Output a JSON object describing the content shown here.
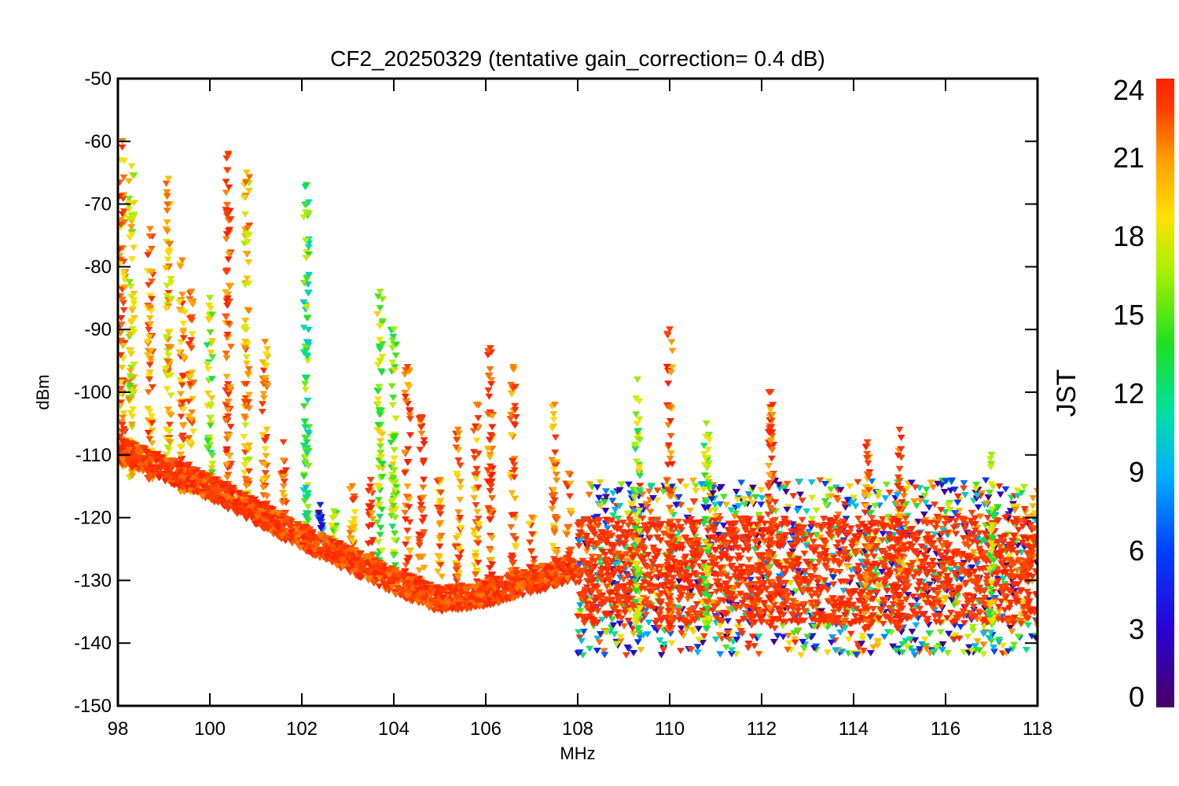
{
  "chart_data": {
    "type": "scatter",
    "title": "CF2_20250329 (tentative gain_correction=  0.4 dB)",
    "xlabel": "MHz",
    "ylabel": "dBm",
    "xlim": [
      98,
      118
    ],
    "ylim": [
      -150,
      -50
    ],
    "xticks": [
      98,
      100,
      102,
      104,
      106,
      108,
      110,
      112,
      114,
      116,
      118
    ],
    "yticks": [
      -50,
      -60,
      -70,
      -80,
      -90,
      -100,
      -110,
      -120,
      -130,
      -140,
      -150
    ],
    "colorbar": {
      "label": "JST",
      "range": [
        0,
        24
      ],
      "ticks": [
        0,
        3,
        6,
        9,
        12,
        15,
        18,
        21,
        24
      ],
      "colormap": "rainbow",
      "colors": [
        "#4a0066",
        "#2b00d0",
        "#0040ff",
        "#00b0ff",
        "#00e0a0",
        "#20e020",
        "#b0f000",
        "#ffe000",
        "#ffa000",
        "#ff4000",
        "#ff2000"
      ]
    },
    "marker": "triangle-down",
    "grid": false,
    "noise_floor": [
      {
        "x": 98,
        "y": -110
      },
      {
        "x": 100,
        "y": -116
      },
      {
        "x": 102,
        "y": -124
      },
      {
        "x": 104,
        "y": -131
      },
      {
        "x": 105,
        "y": -134
      },
      {
        "x": 106,
        "y": -133
      },
      {
        "x": 107,
        "y": -131
      },
      {
        "x": 107.9,
        "y": -129
      },
      {
        "x": 108,
        "y": -130
      },
      {
        "x": 118,
        "y": -130
      }
    ],
    "series": [
      {
        "x": 98.1,
        "y_min": -112,
        "y_max": -60,
        "jst": 20
      },
      {
        "x": 98.3,
        "y_min": -114,
        "y_max": -64,
        "jst": 16
      },
      {
        "x": 98.7,
        "y_min": -114,
        "y_max": -74,
        "jst": 20
      },
      {
        "x": 99.1,
        "y_min": -115,
        "y_max": -66,
        "jst": 18
      },
      {
        "x": 99.4,
        "y_min": -116,
        "y_max": -79,
        "jst": 20
      },
      {
        "x": 99.6,
        "y_min": -116,
        "y_max": -84,
        "jst": 20
      },
      {
        "x": 100.0,
        "y_min": -117,
        "y_max": -85,
        "jst": 14
      },
      {
        "x": 100.4,
        "y_min": -118,
        "y_max": -62,
        "jst": 22
      },
      {
        "x": 100.8,
        "y_min": -119,
        "y_max": -65,
        "jst": 18
      },
      {
        "x": 101.2,
        "y_min": -120,
        "y_max": -92,
        "jst": 20
      },
      {
        "x": 101.6,
        "y_min": -121,
        "y_max": -108,
        "jst": 22
      },
      {
        "x": 102.1,
        "y_min": -123,
        "y_max": -67,
        "jst": 12
      },
      {
        "x": 102.4,
        "y_min": -124,
        "y_max": -118,
        "jst": 4
      },
      {
        "x": 102.7,
        "y_min": -125,
        "y_max": -119,
        "jst": 14
      },
      {
        "x": 103.1,
        "y_min": -126,
        "y_max": -115,
        "jst": 20
      },
      {
        "x": 103.5,
        "y_min": -127,
        "y_max": -114,
        "jst": 22
      },
      {
        "x": 103.7,
        "y_min": -128,
        "y_max": -84,
        "jst": 14
      },
      {
        "x": 104.0,
        "y_min": -130,
        "y_max": -90,
        "jst": 14
      },
      {
        "x": 104.3,
        "y_min": -131,
        "y_max": -96,
        "jst": 22
      },
      {
        "x": 104.6,
        "y_min": -132,
        "y_max": -104,
        "jst": 22
      },
      {
        "x": 105.0,
        "y_min": -133,
        "y_max": -114,
        "jst": 20
      },
      {
        "x": 105.4,
        "y_min": -133,
        "y_max": -106,
        "jst": 20
      },
      {
        "x": 105.8,
        "y_min": -133,
        "y_max": -102,
        "jst": 20
      },
      {
        "x": 106.1,
        "y_min": -133,
        "y_max": -93,
        "jst": 22
      },
      {
        "x": 106.6,
        "y_min": -132,
        "y_max": -96,
        "jst": 20
      },
      {
        "x": 107.0,
        "y_min": -131,
        "y_max": -120,
        "jst": 20
      },
      {
        "x": 107.5,
        "y_min": -130,
        "y_max": -102,
        "jst": 20
      },
      {
        "x": 107.8,
        "y_min": -130,
        "y_max": -113,
        "jst": 20
      },
      {
        "x": 109.3,
        "y_min": -138,
        "y_max": -98,
        "jst": 14
      },
      {
        "x": 110.0,
        "y_min": -138,
        "y_max": -90,
        "jst": 22
      },
      {
        "x": 110.8,
        "y_min": -138,
        "y_max": -105,
        "jst": 14
      },
      {
        "x": 112.2,
        "y_min": -138,
        "y_max": -100,
        "jst": 22
      },
      {
        "x": 114.3,
        "y_min": -138,
        "y_max": -108,
        "jst": 22
      },
      {
        "x": 115.0,
        "y_min": -138,
        "y_max": -106,
        "jst": 22
      },
      {
        "x": 117.0,
        "y_min": -137,
        "y_max": -110,
        "jst": 14
      }
    ],
    "broadband_region": {
      "x": [
        108,
        118
      ],
      "y_min": -142,
      "y_max": -114,
      "floor_band": [
        -137,
        -120
      ]
    }
  }
}
